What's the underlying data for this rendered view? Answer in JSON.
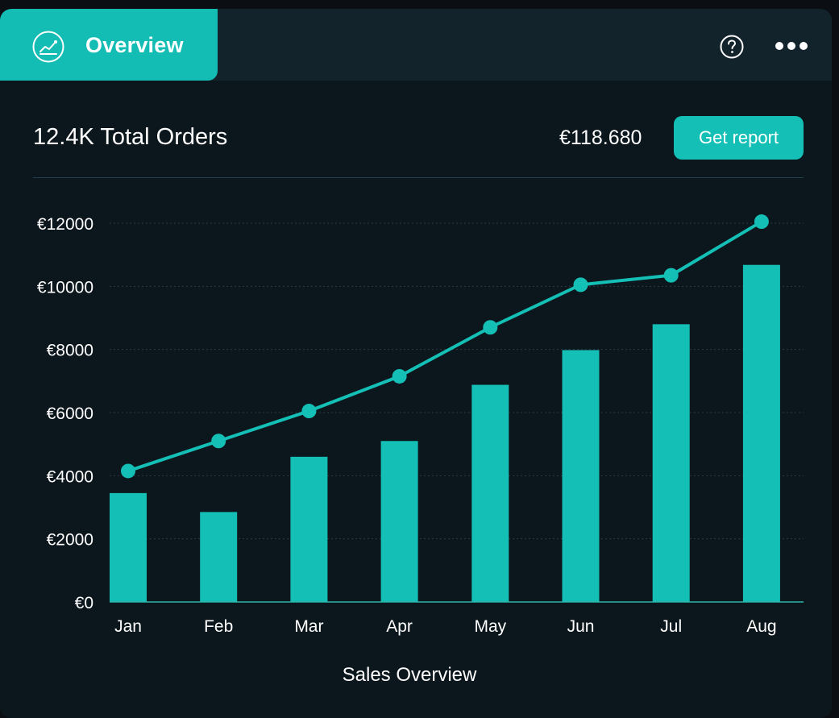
{
  "header": {
    "active_tab_label": "Overview",
    "active_tab_icon": "line-chart-icon",
    "help_icon": "help-circle-icon",
    "more_icon": "more-horizontal-icon"
  },
  "summary": {
    "title": "12.4K Total Orders",
    "amount": "€118.680",
    "report_button_label": "Get report"
  },
  "colors": {
    "accent": "#14bfb5",
    "background": "#0c161d",
    "header": "#13232c"
  },
  "chart_data": {
    "type": "bar",
    "title": "",
    "xlabel": "Sales Overview",
    "ylabel": "",
    "categories": [
      "Jan",
      "Feb",
      "Mar",
      "Apr",
      "May",
      "Jun",
      "Jul",
      "Aug"
    ],
    "series": [
      {
        "type": "bar",
        "values": [
          3450,
          2850,
          4600,
          5100,
          6880,
          7980,
          8800,
          10680
        ]
      },
      {
        "type": "line",
        "values": [
          4150,
          5100,
          6050,
          7150,
          8700,
          10050,
          10350,
          12050
        ]
      }
    ],
    "ylim": [
      0,
      12000
    ],
    "yticks": [
      0,
      2000,
      4000,
      6000,
      8000,
      10000,
      12000
    ],
    "ytick_labels": [
      "€0",
      "€2000",
      "€4000",
      "€6000",
      "€8000",
      "€10000",
      "€12000"
    ],
    "grid": true,
    "legend": "none"
  }
}
